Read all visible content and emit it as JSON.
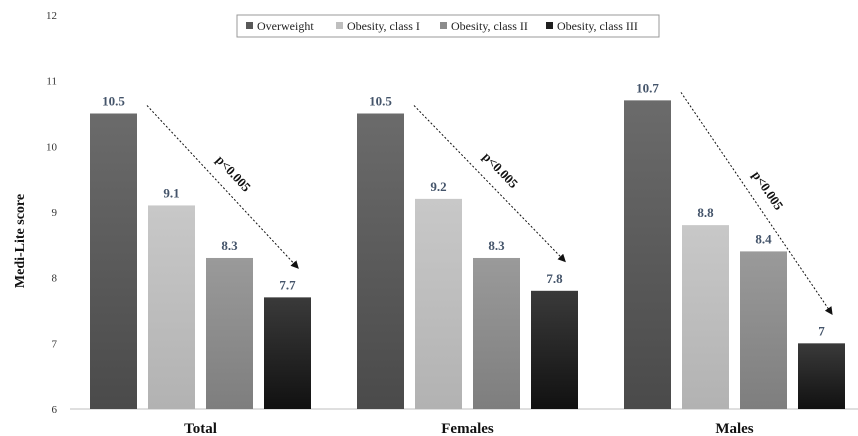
{
  "chart_data": {
    "type": "bar",
    "categories": [
      "Total",
      "Females",
      "Males"
    ],
    "series": [
      {
        "name": "Overweight",
        "values": [
          10.5,
          10.5,
          10.7
        ],
        "color": "#595959"
      },
      {
        "name": "Obesity, class I",
        "values": [
          9.1,
          9.2,
          8.8
        ],
        "color": "#bfbfbf"
      },
      {
        "name": "Obesity, class II",
        "values": [
          8.3,
          8.3,
          8.4
        ],
        "color": "#8c8c8c"
      },
      {
        "name": "Obesity, class III",
        "values": [
          7.7,
          7.8,
          7
        ],
        "color": "#1f1f1f"
      }
    ],
    "data_labels": [
      [
        "10.5",
        "9.1",
        "8.3",
        "7.7"
      ],
      [
        "10.5",
        "9.2",
        "8.3",
        "7.8"
      ],
      [
        "10.7",
        "8.8",
        "8.4",
        "7"
      ]
    ],
    "ylabel": "Medi-Lite score",
    "xlabel": "",
    "ylim": [
      6,
      12
    ],
    "yticks": [
      "6",
      "7",
      "8",
      "9",
      "10",
      "11",
      "12"
    ],
    "annotation": "p<0.005",
    "legend_position": "top",
    "grid": false
  }
}
